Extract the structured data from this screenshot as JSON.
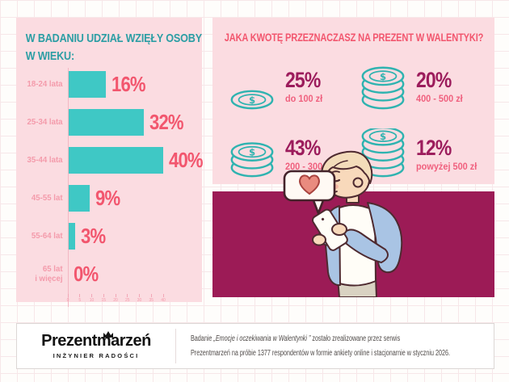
{
  "colors": {
    "panel_pink": "#FBDCE1",
    "bar_teal": "#3FC8C5",
    "pink_text": "#F2566E",
    "label_pink": "#F49BAB",
    "teal_title": "#2B9EA4",
    "maroon": "#9C1B56",
    "percent_maroon": "#9C1C5C",
    "coin_teal": "#2FB3B0"
  },
  "left_panel": {
    "title_line1": "W BADANIU UDZIAŁ WZIĘŁY OSOBY",
    "title_line2": "W WIEKU:",
    "bars": [
      {
        "label": "18-24 lata",
        "value": 16,
        "percent": "16%"
      },
      {
        "label": "25-34 lata",
        "value": 32,
        "percent": "32%"
      },
      {
        "label": "35-44 lata",
        "value": 40,
        "percent": "40%"
      },
      {
        "label": "45-55 lat",
        "value": 9,
        "percent": "9%"
      },
      {
        "label": "55-64 lat",
        "value": 3,
        "percent": "3%"
      },
      {
        "label": "65 lat\ni więcej",
        "value": 0,
        "percent": "0%"
      }
    ],
    "axis_ticks": [
      "0",
      "5",
      "10",
      "15",
      "20",
      "25",
      "30",
      "35",
      "40"
    ],
    "axis_max": 40
  },
  "right_panel": {
    "title": "JAKA KWOTĘ PRZEZNACZASZ NA PREZENT W WALENTYKI?",
    "stats": [
      {
        "percent": "25%",
        "range": "do 100 zł",
        "coins": 1
      },
      {
        "percent": "20%",
        "range": "400 - 500 zł",
        "coins": 4
      },
      {
        "percent": "43%",
        "range": "200 - 300 zł",
        "coins": 3
      },
      {
        "percent": "12%",
        "range": "powyżej 500 zł",
        "coins": 5
      }
    ]
  },
  "footer": {
    "logo_name": "Prezentmarzeń",
    "logo_subtitle": "INŻYNIER RADOŚCI",
    "note_prefix": "Badanie ",
    "note_italic": "„Emocje i oczekiwania w Walentynki ”",
    "note_suffix": " zostało zrealizowane przez serwis",
    "note_line2": "Prezentmarzeń na próbie 1377 respondentów w formie ankiety online i stacjonarnie w styczniu 2026."
  },
  "chart_data": [
    {
      "type": "bar",
      "orientation": "horizontal",
      "title": "W BADANIU UDZIAŁ WZIĘŁY OSOBY W WIEKU:",
      "categories": [
        "18-24 lata",
        "25-34 lata",
        "35-44 lata",
        "45-55 lat",
        "55-64 lat",
        "65 lat i więcej"
      ],
      "values": [
        16,
        32,
        40,
        9,
        3,
        0
      ],
      "unit": "%",
      "xlabel": "",
      "ylabel": "wiek",
      "xlim": [
        0,
        40
      ],
      "x_ticks": [
        0,
        5,
        10,
        15,
        20,
        25,
        30,
        35,
        40
      ],
      "grid": false,
      "legend": "none",
      "bar_color": "#3FC8C5"
    },
    {
      "type": "bar",
      "style": "pictogram-coins",
      "title": "JAKA KWOTĘ PRZEZNACZASZ NA PREZENT W WALENTYKI?",
      "categories": [
        "do 100 zł",
        "400 - 500 zł",
        "200 - 300 zł",
        "powyżej 500 zł"
      ],
      "values": [
        25,
        20,
        43,
        12
      ],
      "unit": "%",
      "coin_counts": [
        1,
        4,
        3,
        5
      ],
      "grid": false,
      "legend": "none"
    }
  ]
}
